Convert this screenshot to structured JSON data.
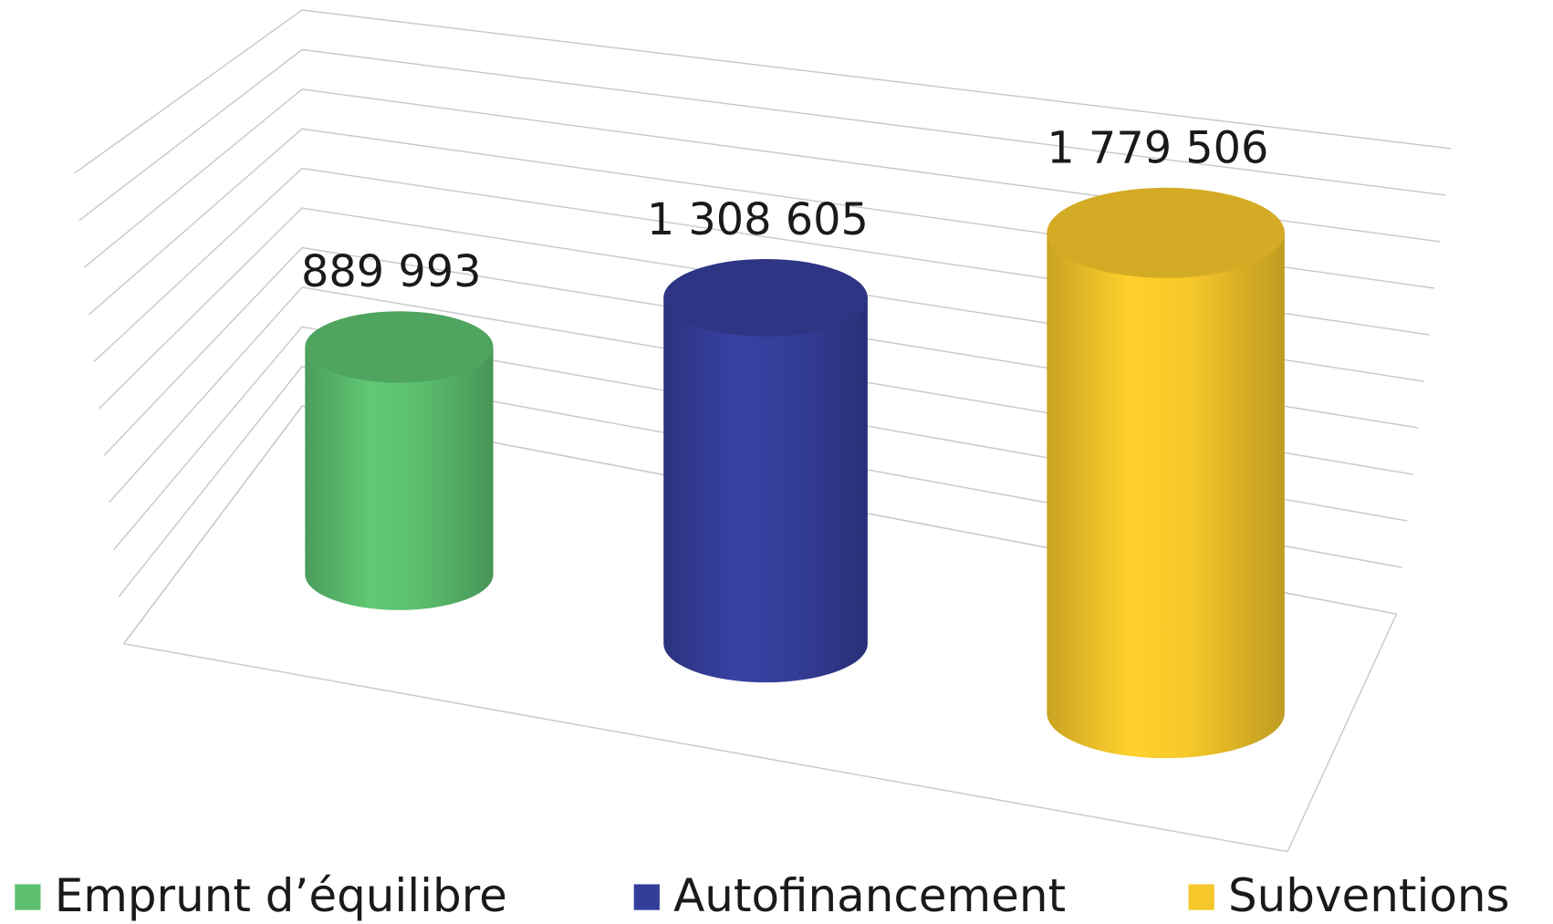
{
  "chart_data": {
    "type": "bar",
    "series": [
      {
        "name": "Emprunt d’équilibre",
        "color": "#5cbf6f",
        "values": [
          889993
        ],
        "value_labels": [
          "889 993"
        ]
      },
      {
        "name": "Autofinancement",
        "color": "#343e9a",
        "values": [
          1308605
        ],
        "value_labels": [
          "1 308 605"
        ]
      },
      {
        "name": "Subventions",
        "color": "#f5c72a",
        "values": [
          1779506
        ],
        "value_labels": [
          "1 779 506"
        ]
      }
    ],
    "ylim": [
      0,
      2000000
    ],
    "yticks": [
      0,
      200000,
      400000,
      600000,
      800000,
      1000000,
      1200000,
      1400000,
      1600000,
      1800000,
      2000000
    ],
    "grid": true
  }
}
